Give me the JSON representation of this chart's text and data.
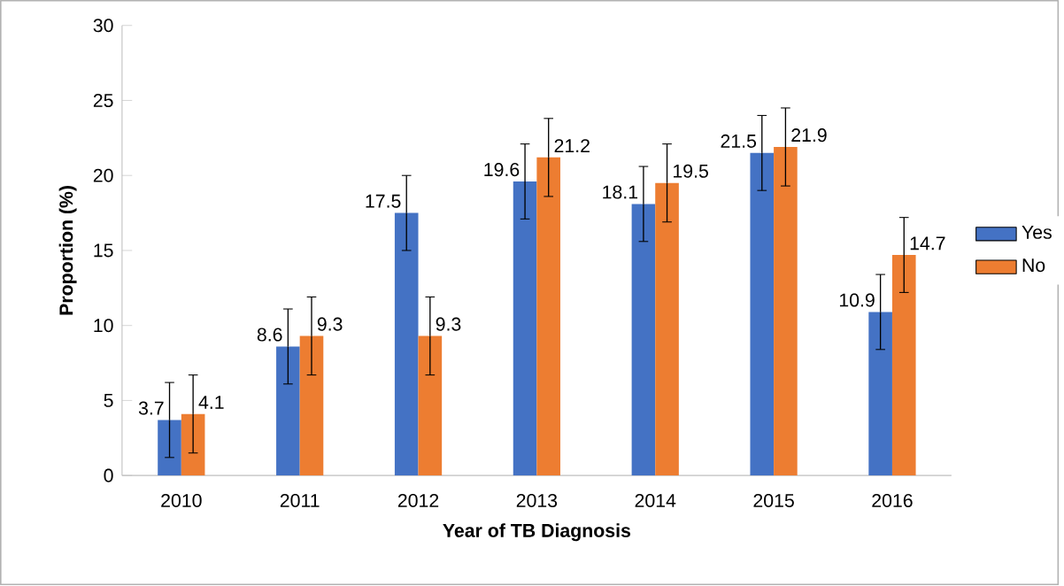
{
  "chart_data": {
    "type": "bar",
    "xlabel": "Year of TB Diagnosis",
    "ylabel": "Proportion (%)",
    "categories": [
      "2010",
      "2011",
      "2012",
      "2013",
      "2014",
      "2015",
      "2016"
    ],
    "series": [
      {
        "name": "Yes",
        "color": "#4472c4",
        "values": [
          3.7,
          8.6,
          17.5,
          19.6,
          18.1,
          21.5,
          10.9
        ],
        "errors": [
          2.5,
          2.5,
          2.5,
          2.5,
          2.5,
          2.5,
          2.5
        ]
      },
      {
        "name": "No",
        "color": "#ed7d31",
        "values": [
          4.1,
          9.3,
          9.3,
          21.2,
          19.5,
          21.9,
          14.7
        ],
        "errors": [
          2.6,
          2.6,
          2.6,
          2.6,
          2.6,
          2.6,
          2.5
        ]
      }
    ],
    "ylim": [
      0,
      30
    ],
    "yticks": [
      0,
      5,
      10,
      15,
      20,
      25,
      30
    ],
    "data_labels": true,
    "legend": "right",
    "grid": false
  }
}
